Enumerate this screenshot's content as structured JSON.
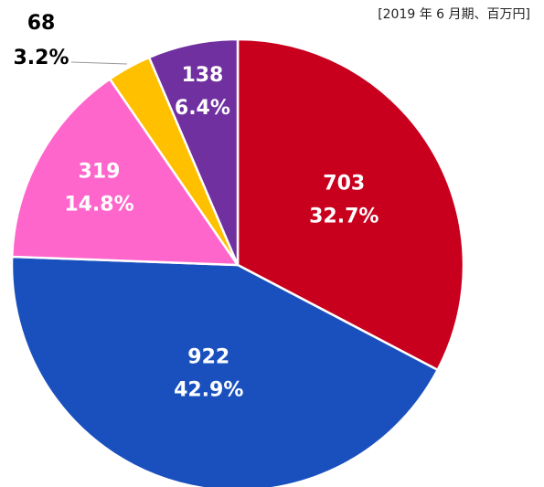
{
  "chart_data": {
    "type": "pie",
    "note": "[2019 年 6 月期、百万円]",
    "values": [
      703,
      922,
      319,
      68,
      138
    ],
    "percent_labels": [
      "32.7%",
      "42.9%",
      "14.8%",
      "3.2%",
      "6.4%"
    ],
    "colors": [
      "#c8001e",
      "#1a50be",
      "#ff66cc",
      "#ffc000",
      "#7030a0"
    ]
  }
}
